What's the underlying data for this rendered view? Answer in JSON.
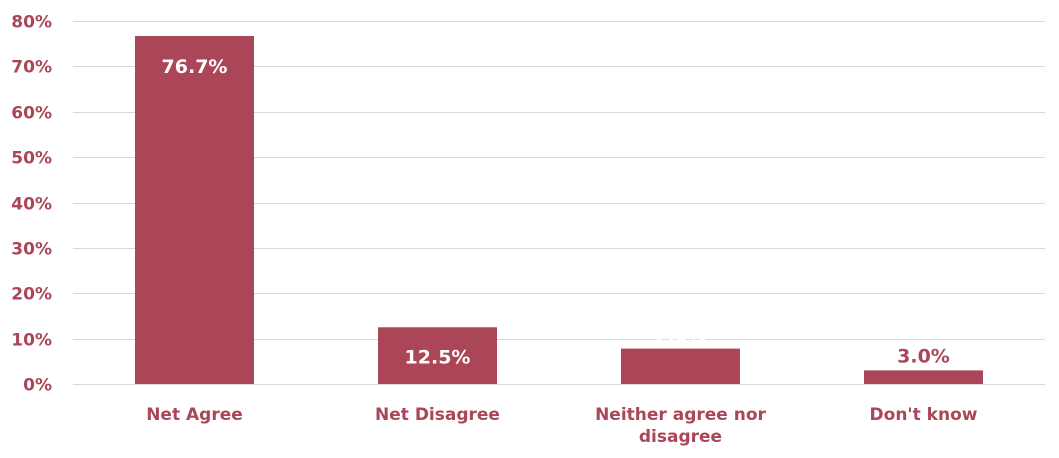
{
  "chart_data": {
    "type": "bar",
    "categories": [
      "Net Agree",
      "Net Disagree",
      "Neither agree nor disagree",
      "Don't know"
    ],
    "category_lines": [
      [
        "Net Agree"
      ],
      [
        "Net Disagree"
      ],
      [
        "Neither agree nor",
        "disagree"
      ],
      [
        "Don't know"
      ]
    ],
    "values": [
      76.7,
      12.5,
      7.8,
      3.0
    ],
    "data_labels": [
      "76.7%",
      "12.5%",
      "7.8%",
      "3.0%"
    ],
    "data_label_colors": [
      "#ffffff",
      "#ffffff",
      "#ffffff",
      "#ab4659"
    ],
    "ylim": [
      0,
      80
    ],
    "yticks": [
      0,
      10,
      20,
      30,
      40,
      50,
      60,
      70,
      80
    ],
    "ytick_labels": [
      "0%",
      "10%",
      "20%",
      "30%",
      "40%",
      "50%",
      "60%",
      "70%",
      "80%"
    ],
    "grid": true,
    "bar_color": "#ab4659",
    "text_color": "#ab4659",
    "title": "",
    "xlabel": "",
    "ylabel": ""
  }
}
